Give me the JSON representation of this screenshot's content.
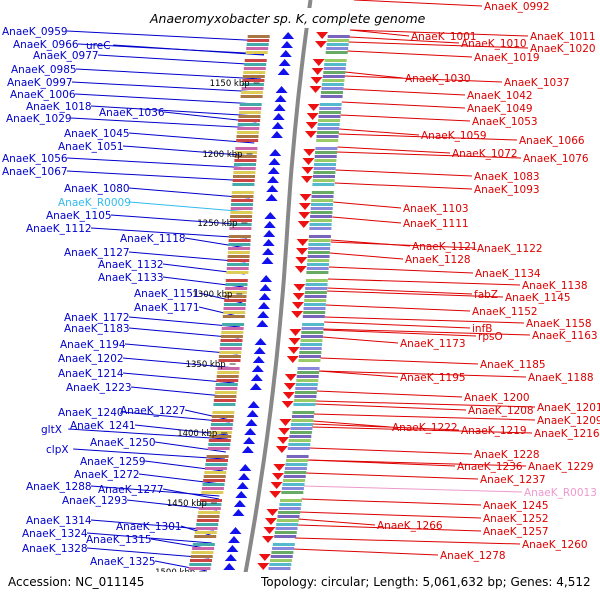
{
  "title": "Anaeromyxobacter sp. K, complete genome",
  "footer": {
    "accession": "Accession: NC_011145",
    "summary": "Topology: circular; Length: 5,061,632 bp; Genes: 4,512"
  },
  "kbp_marks": [
    "1150 kbp",
    "1200 kbp",
    "1250 kbp",
    "1300 kbp",
    "1350 kbp",
    "1400 kbp",
    "1450 kbp",
    "1500 kbp"
  ],
  "colors": {
    "left_labels": "#0000cc",
    "right_labels": "#dd0000",
    "rna_left": "#33bbee",
    "rna_right": "#ee99cc",
    "backbone": "#888888"
  },
  "left_labels": [
    "AnaeK_0959",
    "AnaeK_0966",
    "ureC",
    "AnaeK_0977",
    "AnaeK_0985",
    "AnaeK_0997",
    "AnaeK_1006",
    "AnaeK_1018",
    "AnaeK_1036",
    "AnaeK_1029",
    "AnaeK_1045",
    "AnaeK_1051",
    "AnaeK_1056",
    "AnaeK_1067",
    "AnaeK_1080",
    "AnaeK_R0009",
    "AnaeK_1105",
    "AnaeK_1112",
    "AnaeK_1118",
    "AnaeK_1127",
    "AnaeK_1132",
    "AnaeK_1133",
    "AnaeK_1151",
    "AnaeK_1171",
    "AnaeK_1172",
    "AnaeK_1183",
    "AnaeK_1194",
    "AnaeK_1202",
    "AnaeK_1214",
    "AnaeK_1223",
    "AnaeK_1240",
    "AnaeK_1227",
    "AnaeK_1241",
    "gltX",
    "AnaeK_1250",
    "clpX",
    "AnaeK_1259",
    "AnaeK_1272",
    "AnaeK_1288",
    "AnaeK_1277",
    "AnaeK_1293",
    "AnaeK_1314",
    "AnaeK_1301",
    "AnaeK_1324",
    "AnaeK_1315",
    "AnaeK_1328",
    "AnaeK_1325"
  ],
  "right_labels": [
    "AnaeK_0992",
    "AnaeK_1001",
    "AnaeK_1011",
    "AnaeK_1010",
    "AnaeK_1020",
    "AnaeK_1019",
    "AnaeK_1030",
    "AnaeK_1037",
    "AnaeK_1042",
    "AnaeK_1049",
    "AnaeK_1053",
    "AnaeK_1059",
    "AnaeK_1066",
    "AnaeK_1072",
    "AnaeK_1076",
    "AnaeK_1083",
    "AnaeK_1093",
    "AnaeK_1103",
    "AnaeK_1111",
    "AnaeK_1121",
    "AnaeK_1122",
    "AnaeK_1128",
    "AnaeK_1134",
    "AnaeK_1138",
    "fabZ",
    "AnaeK_1145",
    "AnaeK_1152",
    "AnaeK_1158",
    "infB",
    "rpsO",
    "AnaeK_1163",
    "AnaeK_1173",
    "AnaeK_1185",
    "AnaeK_1195",
    "AnaeK_1188",
    "AnaeK_1200",
    "AnaeK_1201",
    "AnaeK_1208",
    "AnaeK_1209",
    "AnaeK_1222",
    "AnaeK_1219",
    "AnaeK_1216",
    "AnaeK_1228",
    "AnaeK_1236",
    "AnaeK_1229",
    "AnaeK_1237",
    "AnaeK_R0013",
    "AnaeK_1245",
    "AnaeK_1252",
    "AnaeK_1266",
    "AnaeK_1257",
    "AnaeK_1260",
    "AnaeK_1278"
  ]
}
